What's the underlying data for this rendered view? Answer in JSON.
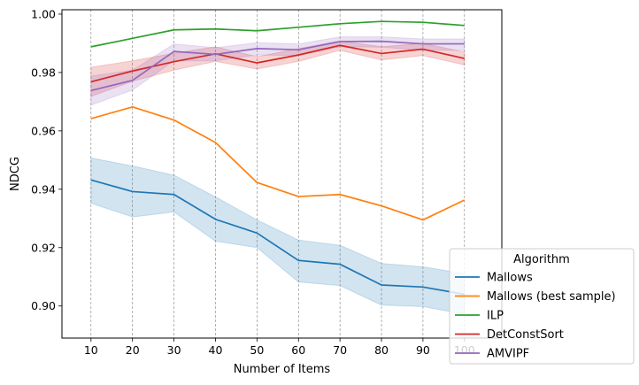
{
  "chart_data": {
    "type": "line",
    "xlabel": "Number of Items",
    "ylabel": "NDCG",
    "x": [
      10,
      20,
      30,
      40,
      50,
      60,
      70,
      80,
      90,
      100
    ],
    "xlim": [
      3,
      109
    ],
    "ylim": [
      0.889,
      1.0015
    ],
    "xticks": [
      10,
      20,
      30,
      40,
      50,
      60,
      70,
      80,
      90,
      100
    ],
    "yticks": [
      0.9,
      0.92,
      0.94,
      0.96,
      0.98,
      1.0
    ],
    "ytick_labels": [
      "0.90",
      "0.92",
      "0.94",
      "0.96",
      "0.98",
      "1.00"
    ],
    "grid": "vertical dashed",
    "legend": {
      "title": "Algorithm",
      "placement": "lower-right"
    },
    "series": [
      {
        "name": "Mallows",
        "color": "#1f77b4",
        "values": [
          0.9432,
          0.9392,
          0.9382,
          0.9297,
          0.925,
          0.9156,
          0.9143,
          0.9072,
          0.9065,
          0.904
        ],
        "band_lower": [
          0.9352,
          0.9305,
          0.9322,
          0.9222,
          0.92,
          0.9082,
          0.907,
          0.9003,
          0.8998,
          0.8972
        ],
        "band_upper": [
          0.9507,
          0.948,
          0.9448,
          0.9374,
          0.9295,
          0.9226,
          0.9208,
          0.9146,
          0.9134,
          0.9111
        ]
      },
      {
        "name": "Mallows (best sample)",
        "color": "#ff7f0e",
        "values": [
          0.9642,
          0.9682,
          0.9637,
          0.956,
          0.9423,
          0.9375,
          0.9382,
          0.9343,
          0.9295,
          0.9363
        ]
      },
      {
        "name": "ILP",
        "color": "#2ca02c",
        "values": [
          0.9888,
          0.9917,
          0.9946,
          0.9949,
          0.9943,
          0.9955,
          0.9967,
          0.9975,
          0.9972,
          0.9961
        ]
      },
      {
        "name": "DetConstSort",
        "color": "#d62728",
        "values": [
          0.9768,
          0.9805,
          0.9837,
          0.9864,
          0.9833,
          0.986,
          0.9893,
          0.9865,
          0.988,
          0.9848
        ],
        "band_lower": [
          0.9718,
          0.977,
          0.9808,
          0.9838,
          0.9812,
          0.9838,
          0.9876,
          0.9843,
          0.9858,
          0.9826
        ],
        "band_upper": [
          0.9818,
          0.984,
          0.9866,
          0.9888,
          0.9854,
          0.9882,
          0.9908,
          0.9888,
          0.99,
          0.987
        ]
      },
      {
        "name": "AMVIPF",
        "color": "#9467bd",
        "values": [
          0.9738,
          0.9773,
          0.9872,
          0.9862,
          0.9882,
          0.9878,
          0.9906,
          0.9907,
          0.9898,
          0.9898
        ],
        "band_lower": [
          0.9688,
          0.974,
          0.984,
          0.984,
          0.986,
          0.9858,
          0.9888,
          0.9887,
          0.9876,
          0.9876
        ],
        "band_upper": [
          0.9788,
          0.9808,
          0.9898,
          0.9885,
          0.9902,
          0.9898,
          0.9922,
          0.9922,
          0.9915,
          0.9915
        ]
      }
    ]
  }
}
